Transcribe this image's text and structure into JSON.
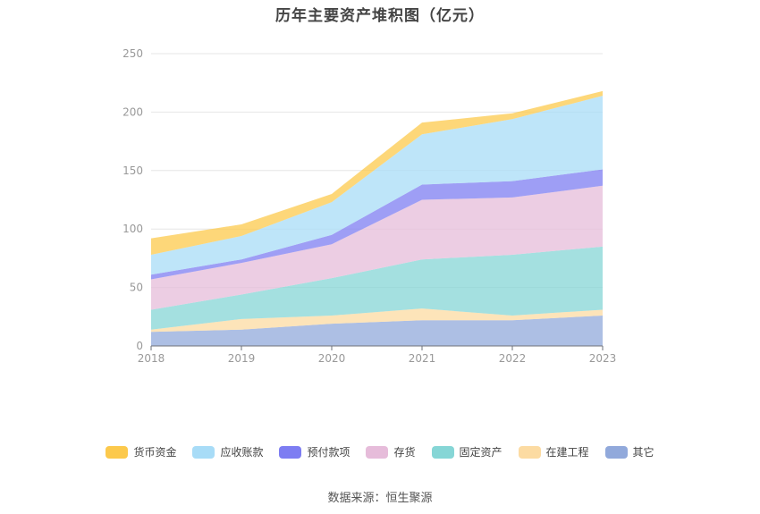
{
  "chart_data": {
    "type": "area",
    "stacked": true,
    "title": "历年主要资产堆积图（亿元）",
    "categories": [
      "2018",
      "2019",
      "2020",
      "2021",
      "2022",
      "2023"
    ],
    "ylim": [
      0,
      250
    ],
    "yticks": [
      0,
      50,
      100,
      150,
      200,
      250
    ],
    "grid": true,
    "legend_position": "bottom",
    "series": [
      {
        "name": "其它",
        "color": "#91a9db",
        "values": [
          12,
          14,
          19,
          22,
          22,
          26
        ]
      },
      {
        "name": "在建工程",
        "color": "#fcdba2",
        "values": [
          2,
          9,
          7,
          10,
          4,
          5
        ]
      },
      {
        "name": "固定资产",
        "color": "#86d6d6",
        "values": [
          17,
          21,
          32,
          42,
          52,
          54
        ]
      },
      {
        "name": "存货",
        "color": "#e6bcda",
        "values": [
          26,
          27,
          29,
          51,
          49,
          52
        ]
      },
      {
        "name": "预付款项",
        "color": "#7d7df2",
        "values": [
          4,
          3,
          8,
          13,
          14,
          14
        ]
      },
      {
        "name": "应收账款",
        "color": "#a8dcf7",
        "values": [
          17,
          20,
          28,
          43,
          53,
          63
        ]
      },
      {
        "name": "货币资金",
        "color": "#fcc94c",
        "values": [
          14,
          10,
          7,
          10,
          5,
          4
        ]
      }
    ]
  },
  "legend_order": [
    "货币资金",
    "应收账款",
    "预付款项",
    "存货",
    "固定资产",
    "在建工程",
    "其它"
  ],
  "source": "数据来源：恒生聚源"
}
